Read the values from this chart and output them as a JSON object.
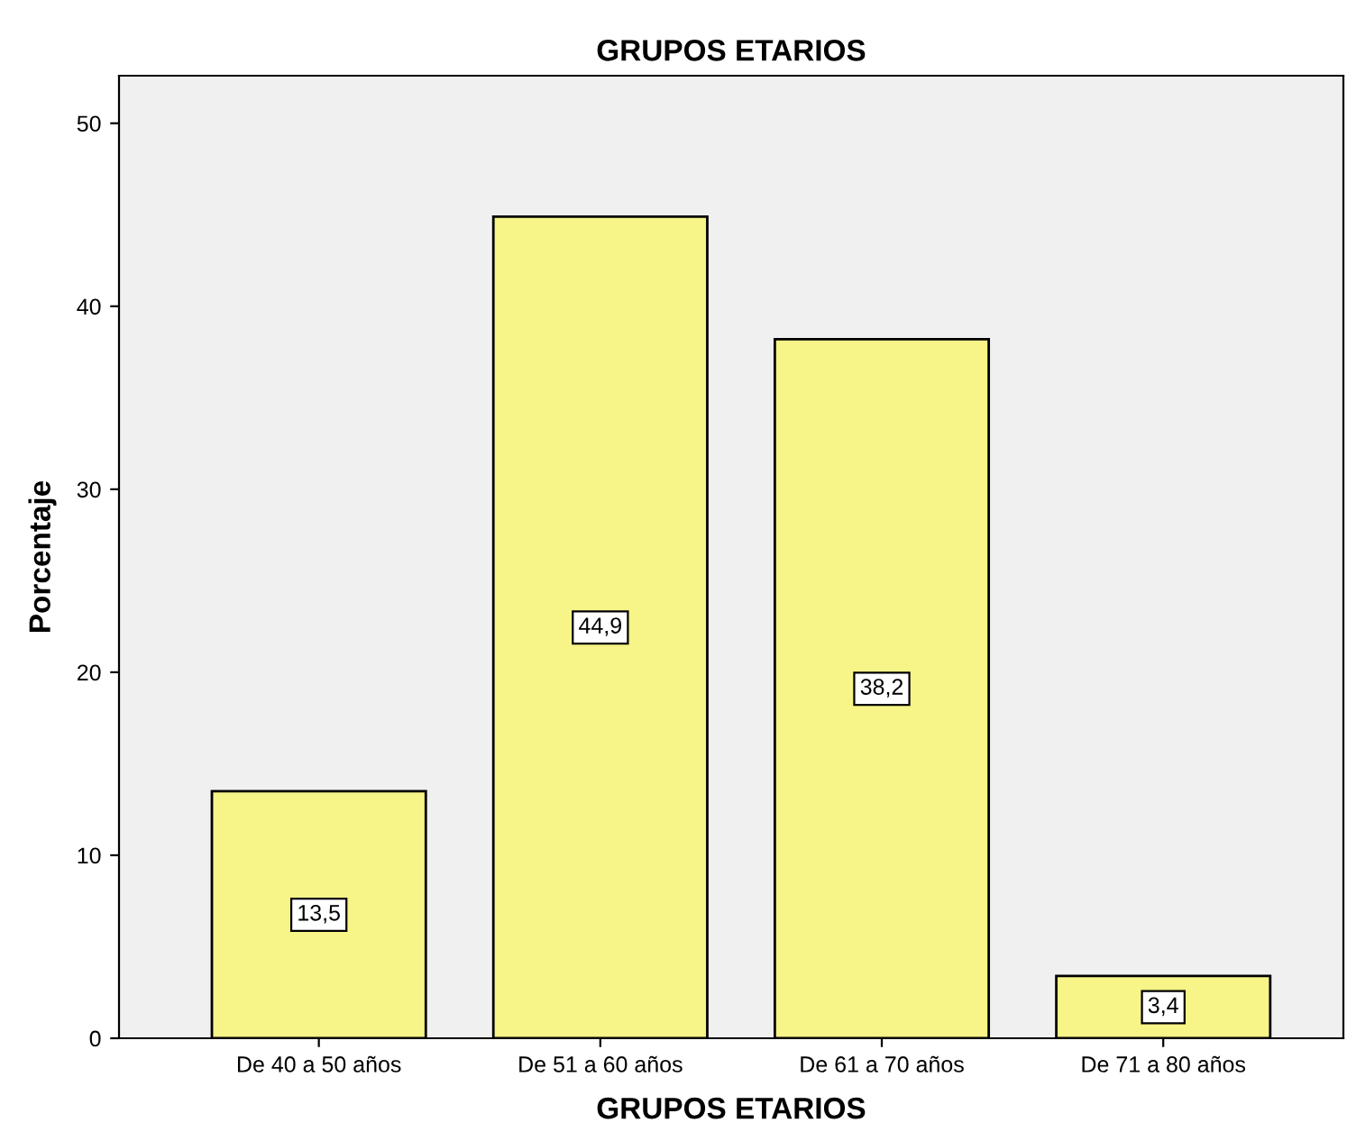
{
  "chart_data": {
    "type": "bar",
    "title": "GRUPOS ETARIOS",
    "xlabel": "GRUPOS ETARIOS",
    "ylabel": "Porcentaje",
    "categories": [
      "De 40 a 50 años",
      "De 51 a 60 años",
      "De 61 a 70 años",
      "De 71 a 80 años"
    ],
    "values": [
      13.5,
      44.9,
      38.2,
      3.4
    ],
    "value_labels": [
      "13,5",
      "44,9",
      "38,2",
      "3,4"
    ],
    "color": "#f7f488",
    "ylim": [
      0,
      52.6
    ],
    "yticks": [
      0,
      10,
      20,
      30,
      40,
      50
    ],
    "grid": false,
    "legend": false
  }
}
